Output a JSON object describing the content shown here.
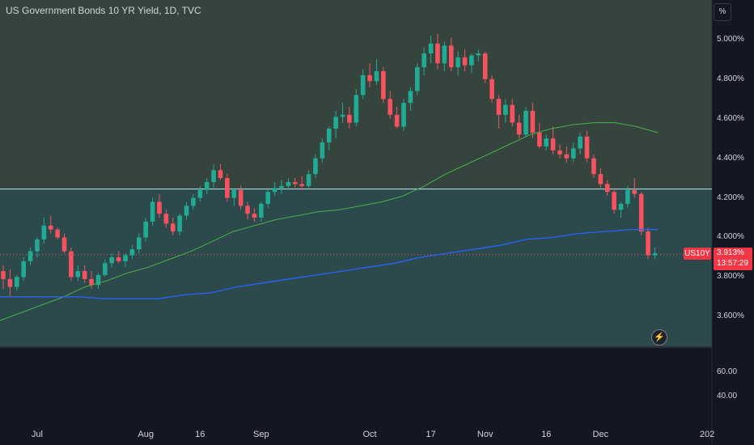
{
  "header": {
    "title": "US Government Bonds 10 YR Yield, 1D, TVC",
    "unit_button": "%"
  },
  "price_tag": {
    "symbol": "US10Y",
    "price": "3.913%",
    "countdown": "13:57:29"
  },
  "colors": {
    "up": "#22ab94",
    "down": "#f7525f",
    "ma_fast": "#4caf50",
    "ma_slow": "#2962ff",
    "zone_upper": "#35453e",
    "zone_lower": "#2c4a4b",
    "hline": "#b2ebf2",
    "background": "#131722"
  },
  "icons": {
    "replay": "lightning-icon"
  },
  "chart_data": [
    {
      "type": "candlestick",
      "series": [
        {
          "name": "US10Y",
          "ohlc": [
            [
              3.83,
              3.86,
              3.74,
              3.79
            ],
            [
              3.79,
              3.84,
              3.7,
              3.75
            ],
            [
              3.75,
              3.81,
              3.73,
              3.8
            ],
            [
              3.8,
              3.9,
              3.78,
              3.88
            ],
            [
              3.88,
              3.95,
              3.86,
              3.93
            ],
            [
              3.93,
              4.0,
              3.9,
              3.99
            ],
            [
              3.99,
              4.1,
              3.97,
              4.06
            ],
            [
              4.06,
              4.11,
              4.02,
              4.04
            ],
            [
              4.04,
              4.05,
              3.99,
              4.0
            ],
            [
              4.0,
              4.02,
              3.92,
              3.93
            ],
            [
              3.93,
              3.95,
              3.78,
              3.8
            ],
            [
              3.8,
              3.86,
              3.78,
              3.83
            ],
            [
              3.83,
              3.86,
              3.77,
              3.79
            ],
            [
              3.79,
              3.83,
              3.74,
              3.76
            ],
            [
              3.76,
              3.82,
              3.74,
              3.81
            ],
            [
              3.81,
              3.89,
              3.8,
              3.87
            ],
            [
              3.87,
              3.92,
              3.85,
              3.9
            ],
            [
              3.9,
              3.93,
              3.87,
              3.88
            ],
            [
              3.88,
              3.92,
              3.85,
              3.91
            ],
            [
              3.91,
              3.96,
              3.89,
              3.94
            ],
            [
              3.94,
              4.02,
              3.92,
              4.0
            ],
            [
              4.0,
              4.1,
              3.98,
              4.08
            ],
            [
              4.08,
              4.2,
              4.06,
              4.18
            ],
            [
              4.18,
              4.22,
              4.1,
              4.12
            ],
            [
              4.12,
              4.14,
              4.05,
              4.07
            ],
            [
              4.07,
              4.1,
              4.01,
              4.03
            ],
            [
              4.03,
              4.12,
              4.01,
              4.11
            ],
            [
              4.11,
              4.18,
              4.09,
              4.16
            ],
            [
              4.16,
              4.22,
              4.14,
              4.2
            ],
            [
              4.2,
              4.26,
              4.18,
              4.24
            ],
            [
              4.24,
              4.3,
              4.22,
              4.28
            ],
            [
              4.28,
              4.37,
              4.25,
              4.34
            ],
            [
              4.34,
              4.37,
              4.29,
              4.3
            ],
            [
              4.3,
              4.32,
              4.18,
              4.2
            ],
            [
              4.2,
              4.25,
              4.16,
              4.24
            ],
            [
              4.24,
              4.26,
              4.14,
              4.16
            ],
            [
              4.16,
              4.18,
              4.09,
              4.12
            ],
            [
              4.12,
              4.15,
              4.08,
              4.1
            ],
            [
              4.1,
              4.18,
              4.08,
              4.17
            ],
            [
              4.17,
              4.25,
              4.15,
              4.23
            ],
            [
              4.23,
              4.28,
              4.21,
              4.25
            ],
            [
              4.25,
              4.29,
              4.22,
              4.26
            ],
            [
              4.26,
              4.3,
              4.24,
              4.28
            ],
            [
              4.28,
              4.3,
              4.25,
              4.27
            ],
            [
              4.27,
              4.31,
              4.24,
              4.26
            ],
            [
              4.26,
              4.34,
              4.25,
              4.32
            ],
            [
              4.32,
              4.42,
              4.3,
              4.4
            ],
            [
              4.4,
              4.5,
              4.38,
              4.48
            ],
            [
              4.48,
              4.56,
              4.44,
              4.55
            ],
            [
              4.55,
              4.64,
              4.5,
              4.61
            ],
            [
              4.61,
              4.68,
              4.58,
              4.62
            ],
            [
              4.62,
              4.66,
              4.55,
              4.58
            ],
            [
              4.58,
              4.75,
              4.56,
              4.72
            ],
            [
              4.72,
              4.85,
              4.7,
              4.82
            ],
            [
              4.82,
              4.88,
              4.76,
              4.79
            ],
            [
              4.79,
              4.9,
              4.77,
              4.84
            ],
            [
              4.84,
              4.86,
              4.68,
              4.7
            ],
            [
              4.7,
              4.74,
              4.6,
              4.62
            ],
            [
              4.62,
              4.66,
              4.55,
              4.56
            ],
            [
              4.56,
              4.7,
              4.54,
              4.68
            ],
            [
              4.68,
              4.76,
              4.64,
              4.74
            ],
            [
              4.74,
              4.88,
              4.72,
              4.86
            ],
            [
              4.86,
              4.96,
              4.82,
              4.93
            ],
            [
              4.93,
              5.02,
              4.88,
              4.98
            ],
            [
              4.98,
              5.03,
              4.85,
              4.88
            ],
            [
              4.88,
              4.99,
              4.84,
              4.97
            ],
            [
              4.97,
              5.01,
              4.84,
              4.86
            ],
            [
              4.86,
              4.94,
              4.82,
              4.91
            ],
            [
              4.91,
              4.95,
              4.84,
              4.87
            ],
            [
              4.87,
              4.93,
              4.83,
              4.92
            ],
            [
              4.92,
              4.95,
              4.89,
              4.93
            ],
            [
              4.93,
              4.94,
              4.78,
              4.8
            ],
            [
              4.8,
              4.82,
              4.68,
              4.7
            ],
            [
              4.7,
              4.72,
              4.55,
              4.62
            ],
            [
              4.62,
              4.7,
              4.58,
              4.67
            ],
            [
              4.67,
              4.7,
              4.56,
              4.58
            ],
            [
              4.58,
              4.62,
              4.5,
              4.52
            ],
            [
              4.52,
              4.66,
              4.51,
              4.64
            ],
            [
              4.64,
              4.68,
              4.5,
              4.53
            ],
            [
              4.53,
              4.58,
              4.45,
              4.46
            ],
            [
              4.46,
              4.52,
              4.44,
              4.5
            ],
            [
              4.5,
              4.56,
              4.42,
              4.44
            ],
            [
              4.44,
              4.47,
              4.4,
              4.42
            ],
            [
              4.42,
              4.46,
              4.38,
              4.4
            ],
            [
              4.4,
              4.48,
              4.38,
              4.45
            ],
            [
              4.45,
              4.53,
              4.42,
              4.51
            ],
            [
              4.51,
              4.54,
              4.38,
              4.4
            ],
            [
              4.4,
              4.42,
              4.3,
              4.32
            ],
            [
              4.32,
              4.35,
              4.25,
              4.27
            ],
            [
              4.27,
              4.29,
              4.21,
              4.23
            ],
            [
              4.23,
              4.25,
              4.12,
              4.14
            ],
            [
              4.14,
              4.18,
              4.1,
              4.17
            ],
            [
              4.17,
              4.26,
              4.15,
              4.24
            ],
            [
              4.24,
              4.3,
              4.2,
              4.22
            ],
            [
              4.22,
              4.23,
              4.01,
              4.03
            ],
            [
              4.03,
              4.05,
              3.89,
              3.91
            ],
            [
              3.91,
              3.95,
              3.89,
              3.92
            ]
          ]
        },
        {
          "name": "",
          "indicator": "moving_average_fast"
        },
        {
          "name": "",
          "indicator": "moving_average_slow"
        }
      ],
      "x_tick_labels": [
        "Jul",
        "Aug",
        "16",
        "Sep",
        "Oct",
        "17",
        "Nov",
        "16",
        "Dec",
        "202"
      ],
      "y_tick_labels": [
        "5.000%",
        "4.800%",
        "4.600%",
        "4.400%",
        "4.200%",
        "4.000%",
        "3.800%",
        "3.600%"
      ],
      "ylim": [
        3.45,
        5.2
      ],
      "horizontal_line": 4.245,
      "last_price": 3.913,
      "zones": [
        {
          "from": 4.245,
          "to": 5.2
        },
        {
          "from": 3.45,
          "to": 4.245
        }
      ],
      "ma_fast": [
        3.58,
        3.62,
        3.66,
        3.7,
        3.75,
        3.78,
        3.82,
        3.85,
        3.89,
        3.93,
        3.98,
        4.03,
        4.06,
        4.09,
        4.11,
        4.13,
        4.14,
        4.16,
        4.18,
        4.21,
        4.26,
        4.32,
        4.37,
        4.42,
        4.47,
        4.52,
        4.55,
        4.57,
        4.58,
        4.58,
        4.56,
        4.53
      ],
      "ma_slow": [
        3.7,
        3.7,
        3.7,
        3.7,
        3.69,
        3.69,
        3.69,
        3.71,
        3.72,
        3.75,
        3.77,
        3.79,
        3.81,
        3.83,
        3.85,
        3.87,
        3.9,
        3.92,
        3.94,
        3.96,
        3.99,
        4.0,
        4.02,
        4.03,
        4.04,
        4.04
      ]
    },
    {
      "type": "line",
      "y_tick_labels": [
        "60.00",
        "40.00"
      ],
      "ylim": [
        20,
        80
      ]
    }
  ]
}
